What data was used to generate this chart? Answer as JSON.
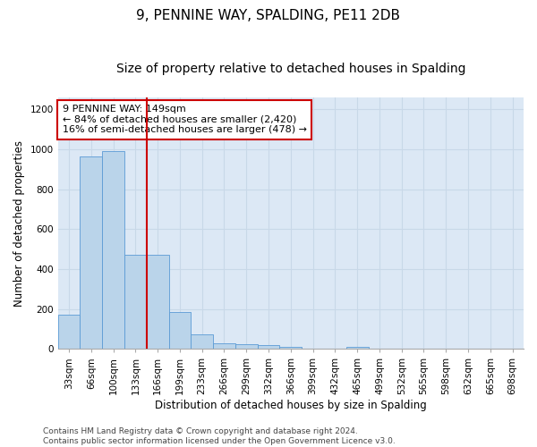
{
  "title": "9, PENNINE WAY, SPALDING, PE11 2DB",
  "subtitle": "Size of property relative to detached houses in Spalding",
  "xlabel": "Distribution of detached houses by size in Spalding",
  "ylabel": "Number of detached properties",
  "bar_color": "#bad4ea",
  "bar_edge_color": "#5b9bd5",
  "grid_color": "#c8d8e8",
  "background_color": "#dce8f5",
  "vline_color": "#cc0000",
  "vline_x": 3.5,
  "annotation_text": "9 PENNINE WAY: 149sqm\n← 84% of detached houses are smaller (2,420)\n16% of semi-detached houses are larger (478) →",
  "annotation_box_color": "#ffffff",
  "annotation_border_color": "#cc0000",
  "bins": [
    "33sqm",
    "66sqm",
    "100sqm",
    "133sqm",
    "166sqm",
    "199sqm",
    "233sqm",
    "266sqm",
    "299sqm",
    "332sqm",
    "366sqm",
    "399sqm",
    "432sqm",
    "465sqm",
    "499sqm",
    "532sqm",
    "565sqm",
    "598sqm",
    "632sqm",
    "665sqm",
    "698sqm"
  ],
  "values": [
    170,
    965,
    990,
    470,
    470,
    185,
    75,
    28,
    22,
    20,
    10,
    0,
    0,
    10,
    0,
    0,
    0,
    0,
    0,
    0,
    0
  ],
  "ylim": [
    0,
    1260
  ],
  "yticks": [
    0,
    200,
    400,
    600,
    800,
    1000,
    1200
  ],
  "footer_text": "Contains HM Land Registry data © Crown copyright and database right 2024.\nContains public sector information licensed under the Open Government Licence v3.0.",
  "title_fontsize": 11,
  "subtitle_fontsize": 10,
  "axis_label_fontsize": 8.5,
  "tick_fontsize": 7.5,
  "annotation_fontsize": 8,
  "footer_fontsize": 6.5
}
